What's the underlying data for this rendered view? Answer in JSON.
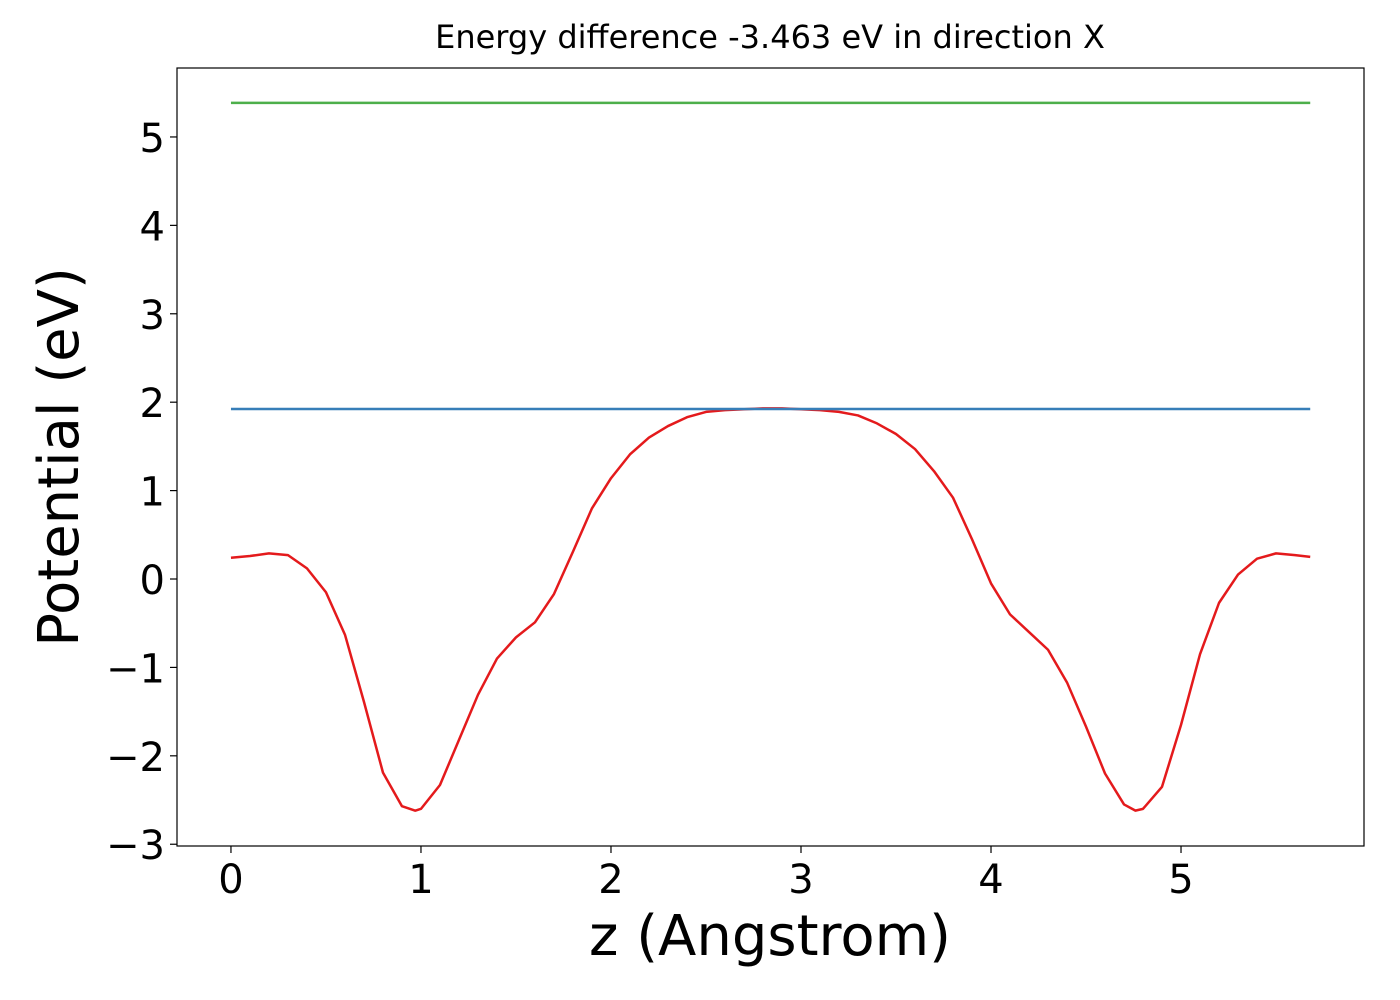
{
  "chart_data": {
    "type": "line",
    "title": "Energy difference -3.463 eV in direction X",
    "xlabel": "z (Angstrom)",
    "ylabel": "Potential (eV)",
    "series": [
      {
        "color": "#e41a1c",
        "x": [
          0,
          0.1,
          0.2,
          0.3,
          0.4,
          0.5,
          0.6,
          0.7,
          0.8,
          0.9,
          0.97,
          1.0,
          1.1,
          1.2,
          1.3,
          1.4,
          1.5,
          1.6,
          1.7,
          1.8,
          1.9,
          2.0,
          2.1,
          2.2,
          2.3,
          2.4,
          2.5,
          2.6,
          2.7,
          2.8,
          2.9,
          3.0,
          3.1,
          3.2,
          3.3,
          3.4,
          3.5,
          3.6,
          3.7,
          3.8,
          3.9,
          4.0,
          4.1,
          4.2,
          4.3,
          4.4,
          4.5,
          4.6,
          4.7,
          4.76,
          4.8,
          4.9,
          5.0,
          5.1,
          5.2,
          5.3,
          5.4,
          5.5,
          5.6,
          5.68
        ],
        "values": [
          0.24,
          0.26,
          0.29,
          0.27,
          0.12,
          -0.15,
          -0.63,
          -1.39,
          -2.19,
          -2.57,
          -2.62,
          -2.6,
          -2.33,
          -1.82,
          -1.31,
          -0.9,
          -0.66,
          -0.49,
          -0.17,
          0.31,
          0.8,
          1.14,
          1.41,
          1.6,
          1.73,
          1.83,
          1.89,
          1.91,
          1.92,
          1.93,
          1.93,
          1.92,
          1.91,
          1.89,
          1.85,
          1.76,
          1.64,
          1.47,
          1.22,
          0.92,
          0.45,
          -0.05,
          -0.4,
          -0.6,
          -0.8,
          -1.17,
          -1.67,
          -2.2,
          -2.55,
          -2.62,
          -2.6,
          -2.35,
          -1.65,
          -0.85,
          -0.27,
          0.05,
          0.23,
          0.29,
          0.27,
          0.25
        ]
      },
      {
        "color": "#377eb8",
        "x": [
          0,
          5.68
        ],
        "values": [
          1.923,
          1.923
        ]
      },
      {
        "color": "#4daf4a",
        "x": [
          0,
          5.68
        ],
        "values": [
          5.385,
          5.385
        ]
      }
    ],
    "xlim": [
      -0.284,
      5.963
    ],
    "ylim": [
      -3.02,
      5.78
    ],
    "xticks": [
      0,
      1,
      2,
      3,
      4,
      5
    ],
    "yticks": [
      {
        "value": -3,
        "label": "−3"
      },
      {
        "value": -2,
        "label": "−2"
      },
      {
        "value": -1,
        "label": "−1"
      },
      0,
      1,
      2,
      3,
      4,
      5
    ],
    "grid": false
  }
}
